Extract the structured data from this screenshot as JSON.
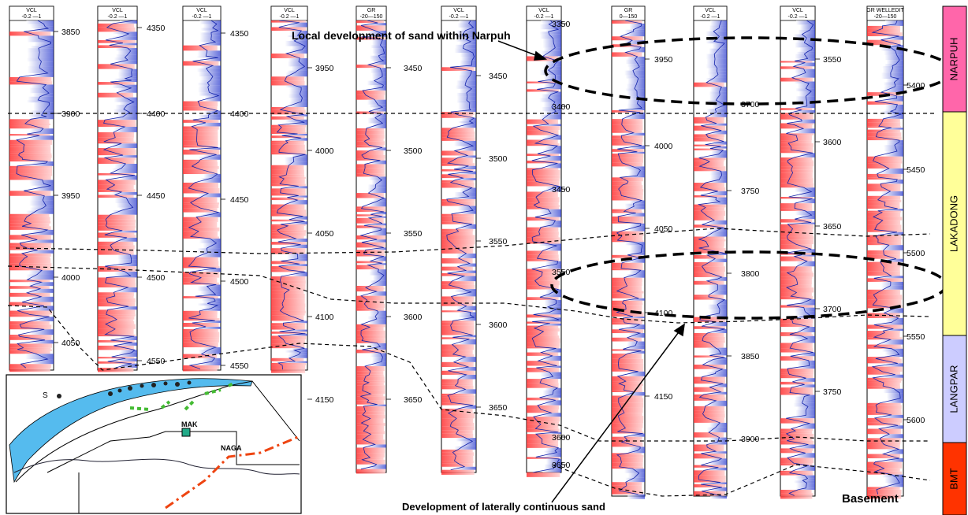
{
  "tracks": [
    {
      "header": [
        "VCL",
        "-0.2  —1"
      ],
      "depths": [
        "3850",
        "3900",
        "3950",
        "4000",
        "4050"
      ]
    },
    {
      "header": [
        "VCL",
        "-0.2  —1"
      ],
      "depths": [
        "4350",
        "4400",
        "4450",
        "4500",
        "4550"
      ]
    },
    {
      "header": [
        "VCL",
        "-0.2  —1"
      ],
      "depths": [
        "4350",
        "4400",
        "4450",
        "4500",
        "4550"
      ]
    },
    {
      "header": [
        "VCL",
        "-0.2  —1"
      ],
      "depths": [
        "3950",
        "4000",
        "4050",
        "4100",
        "4150"
      ]
    },
    {
      "header": [
        "GR",
        "-20—150"
      ],
      "depths": [
        "3450",
        "3500",
        "3550",
        "3600",
        "3650"
      ]
    },
    {
      "header": [
        "VCL",
        "-0.2  —1"
      ],
      "depths": [
        "3450",
        "3500",
        "3550",
        "3600",
        "3650"
      ]
    },
    {
      "header": [
        "VCL",
        "-0.2  —1"
      ],
      "depths": [
        "3350",
        "3400",
        "3450",
        "3550",
        "3600",
        "3650"
      ]
    },
    {
      "header": [
        "GR",
        "0—150"
      ],
      "depths": [
        "3950",
        "4000",
        "4050",
        "4100",
        "4150"
      ]
    },
    {
      "header": [
        "VCL",
        "-0.2  —1"
      ],
      "depths": [
        "3700",
        "3750",
        "3800",
        "3850",
        "3900"
      ]
    },
    {
      "header": [
        "VCL",
        "-0.2  —1"
      ],
      "depths": [
        "3550",
        "3600",
        "3650",
        "3700",
        "3750"
      ]
    },
    {
      "header": [
        "GR WELLEDIT",
        "-20—150"
      ],
      "depths": [
        "5400",
        "5450",
        "5500",
        "5550",
        "5600"
      ]
    }
  ],
  "formations": [
    {
      "name": "NARPUH",
      "color": "#ff66aa"
    },
    {
      "name": "LAKADONG",
      "color": "#ffff99"
    },
    {
      "name": "LANGPAR",
      "color": "#ccccff"
    },
    {
      "name": "BMT",
      "color": "#ff3300"
    }
  ],
  "annotations": {
    "top": "Local development of sand within Narpuh",
    "bottom": "Development of laterally continuous sand",
    "basement": "Basement"
  },
  "inset_map": {
    "labels": {
      "s": "S",
      "mak": "MAK",
      "naga": "NAGA"
    }
  }
}
